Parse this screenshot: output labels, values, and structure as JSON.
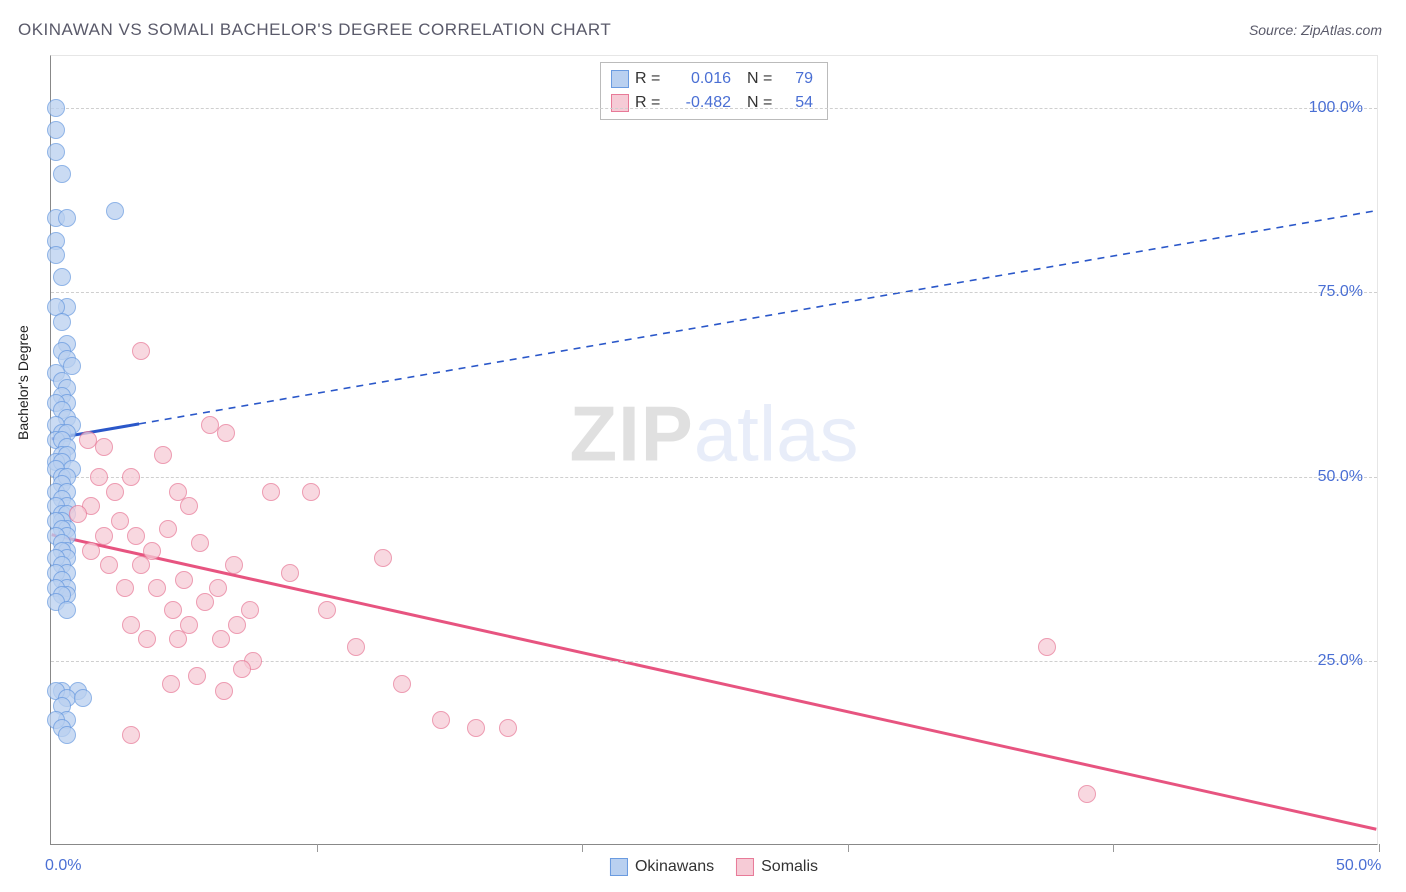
{
  "title": "OKINAWAN VS SOMALI BACHELOR'S DEGREE CORRELATION CHART",
  "source_label": "Source: ",
  "source_value": "ZipAtlas.com",
  "chart": {
    "type": "scatter",
    "ylabel": "Bachelor's Degree",
    "xlim": [
      0,
      50
    ],
    "ylim": [
      0,
      107
    ],
    "x_ticks": [
      0,
      10,
      20,
      30,
      40,
      50
    ],
    "y_ticks": [
      25,
      50,
      75,
      100
    ],
    "x_tick_labels": {
      "0": "0.0%",
      "50": "50.0%"
    },
    "y_tick_labels": {
      "25": "25.0%",
      "50": "50.0%",
      "75": "75.0%",
      "100": "100.0%"
    },
    "grid_color": "#cfcfcf",
    "axis_color": "#888888",
    "background_color": "#ffffff",
    "label_color": "#4a6fd4",
    "title_color": "#5a5a6a",
    "marker_radius": 9,
    "marker_stroke_width": 1.5,
    "series": [
      {
        "name": "Okinawans",
        "color_fill": "#b9d0f0",
        "color_stroke": "#6a9be0",
        "R": "0.016",
        "N": "79",
        "regression": {
          "x1": 0,
          "y1": 55,
          "x2": 50,
          "y2": 86,
          "solid_until_x": 3.3,
          "color": "#2a57c9",
          "width_solid": 3,
          "width_dash": 1.6,
          "dash": "7,6"
        },
        "points": [
          [
            0.2,
            100
          ],
          [
            0.2,
            97
          ],
          [
            0.2,
            94
          ],
          [
            0.4,
            91
          ],
          [
            2.4,
            86
          ],
          [
            0.2,
            85
          ],
          [
            0.6,
            85
          ],
          [
            0.2,
            82
          ],
          [
            0.2,
            80
          ],
          [
            0.4,
            77
          ],
          [
            0.6,
            73
          ],
          [
            0.2,
            73
          ],
          [
            0.4,
            71
          ],
          [
            0.6,
            68
          ],
          [
            0.4,
            67
          ],
          [
            0.6,
            66
          ],
          [
            0.8,
            65
          ],
          [
            0.2,
            64
          ],
          [
            0.4,
            63
          ],
          [
            0.6,
            62
          ],
          [
            0.4,
            61
          ],
          [
            0.6,
            60
          ],
          [
            0.2,
            60
          ],
          [
            0.4,
            59
          ],
          [
            0.6,
            58
          ],
          [
            0.8,
            57
          ],
          [
            0.2,
            57
          ],
          [
            0.4,
            56
          ],
          [
            0.6,
            56
          ],
          [
            0.2,
            55
          ],
          [
            0.4,
            55
          ],
          [
            0.6,
            54
          ],
          [
            0.4,
            53
          ],
          [
            0.6,
            53
          ],
          [
            0.2,
            52
          ],
          [
            0.4,
            52
          ],
          [
            0.8,
            51
          ],
          [
            0.2,
            51
          ],
          [
            0.4,
            50
          ],
          [
            0.6,
            50
          ],
          [
            0.4,
            49
          ],
          [
            0.2,
            48
          ],
          [
            0.6,
            48
          ],
          [
            0.4,
            47
          ],
          [
            0.6,
            46
          ],
          [
            0.2,
            46
          ],
          [
            0.4,
            45
          ],
          [
            0.6,
            45
          ],
          [
            0.4,
            44
          ],
          [
            0.2,
            44
          ],
          [
            0.6,
            43
          ],
          [
            0.4,
            43
          ],
          [
            0.6,
            42
          ],
          [
            0.2,
            42
          ],
          [
            0.4,
            41
          ],
          [
            0.6,
            40
          ],
          [
            0.4,
            40
          ],
          [
            0.6,
            39
          ],
          [
            0.2,
            39
          ],
          [
            0.4,
            38
          ],
          [
            0.6,
            37
          ],
          [
            0.2,
            37
          ],
          [
            0.4,
            36
          ],
          [
            0.6,
            35
          ],
          [
            0.2,
            35
          ],
          [
            0.6,
            34
          ],
          [
            0.4,
            34
          ],
          [
            0.2,
            33
          ],
          [
            0.6,
            32
          ],
          [
            0.4,
            21
          ],
          [
            1.0,
            21
          ],
          [
            0.2,
            21
          ],
          [
            0.6,
            20
          ],
          [
            1.2,
            20
          ],
          [
            0.4,
            19
          ],
          [
            0.6,
            17
          ],
          [
            0.2,
            17
          ],
          [
            0.4,
            16
          ],
          [
            0.6,
            15
          ]
        ]
      },
      {
        "name": "Somalis",
        "color_fill": "#f6cbd6",
        "color_stroke": "#e87a98",
        "R": "-0.482",
        "N": "54",
        "regression": {
          "x1": 0,
          "y1": 42,
          "x2": 50,
          "y2": 2,
          "solid_until_x": 50,
          "color": "#e75480",
          "width_solid": 3,
          "width_dash": 0,
          "dash": ""
        },
        "points": [
          [
            3.4,
            67
          ],
          [
            2.0,
            54
          ],
          [
            1.4,
            55
          ],
          [
            1.8,
            50
          ],
          [
            2.4,
            48
          ],
          [
            3.0,
            50
          ],
          [
            4.2,
            53
          ],
          [
            4.8,
            48
          ],
          [
            5.2,
            46
          ],
          [
            6.0,
            57
          ],
          [
            6.6,
            56
          ],
          [
            8.3,
            48
          ],
          [
            2.0,
            42
          ],
          [
            2.6,
            44
          ],
          [
            3.2,
            42
          ],
          [
            3.8,
            40
          ],
          [
            4.4,
            43
          ],
          [
            5.0,
            36
          ],
          [
            5.6,
            41
          ],
          [
            6.3,
            35
          ],
          [
            6.9,
            38
          ],
          [
            7.5,
            32
          ],
          [
            1.5,
            46
          ],
          [
            1.0,
            45
          ],
          [
            1.5,
            40
          ],
          [
            2.2,
            38
          ],
          [
            2.8,
            35
          ],
          [
            3.4,
            38
          ],
          [
            4.0,
            35
          ],
          [
            4.6,
            32
          ],
          [
            5.2,
            30
          ],
          [
            5.8,
            33
          ],
          [
            6.4,
            28
          ],
          [
            7.0,
            30
          ],
          [
            7.6,
            25
          ],
          [
            3.0,
            30
          ],
          [
            3.6,
            28
          ],
          [
            4.8,
            28
          ],
          [
            9.0,
            37
          ],
          [
            9.8,
            48
          ],
          [
            10.4,
            32
          ],
          [
            11.5,
            27
          ],
          [
            12.5,
            39
          ],
          [
            13.2,
            22
          ],
          [
            14.7,
            17
          ],
          [
            16.0,
            16
          ],
          [
            17.2,
            16
          ],
          [
            37.5,
            27
          ],
          [
            39.0,
            7
          ],
          [
            3.0,
            15
          ],
          [
            4.5,
            22
          ],
          [
            5.5,
            23
          ],
          [
            6.5,
            21
          ],
          [
            7.2,
            24
          ]
        ]
      }
    ],
    "legend_top": {
      "r_label": "R =",
      "n_label": "N ="
    },
    "legend_bottom": [
      {
        "label": "Okinawans",
        "fill": "#b9d0f0",
        "stroke": "#6a9be0"
      },
      {
        "label": "Somalis",
        "fill": "#f6cbd6",
        "stroke": "#e87a98"
      }
    ],
    "watermark": {
      "part1": "ZIP",
      "part2": "atlas"
    }
  }
}
